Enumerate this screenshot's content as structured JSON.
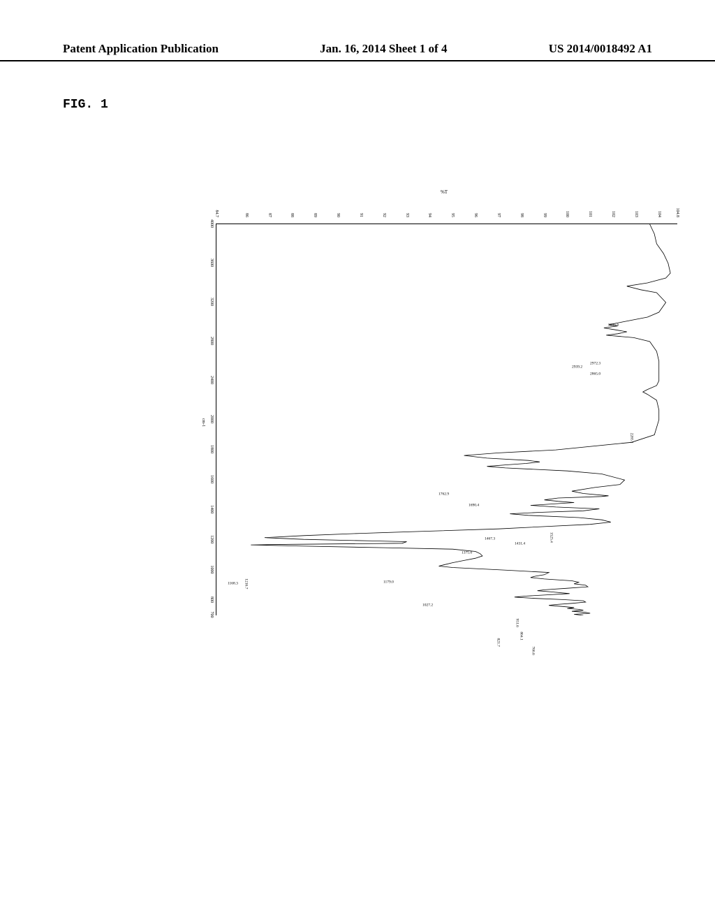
{
  "header": {
    "left": "Patent Application Publication",
    "center": "Jan. 16, 2014  Sheet 1 of 4",
    "right": "US 2014/0018492 A1"
  },
  "figure_label": "FIG. 1",
  "spectrum": {
    "type": "line",
    "xlabel": "cm-1",
    "ylabel": "%T",
    "xlim": [
      4000,
      700
    ],
    "ylim": [
      84.7,
      104.8
    ],
    "bg": "#ffffff",
    "line_color": "#000000",
    "axis_color": "#000000",
    "label_fontsize": 6,
    "x_ticks": [
      4000.0,
      3600,
      3200,
      2800,
      2400,
      2000,
      1800,
      1600,
      1400,
      1200,
      1000,
      800,
      700.0
    ],
    "y_ticks": [
      104.8,
      104,
      103,
      102,
      101,
      100,
      99,
      98,
      97,
      96,
      95,
      94,
      93,
      92,
      91,
      90,
      89,
      88,
      87,
      86,
      84.7
    ],
    "peak_labels": [
      {
        "x": 3366.6,
        "t": 102.4,
        "label": "3366.6",
        "rot": 90
      },
      {
        "x": 2972.3,
        "t": 101.6,
        "label": "2972.3",
        "rot": 90
      },
      {
        "x": 2939.2,
        "t": 100.8,
        "label": "2939.2",
        "rot": 90
      },
      {
        "x": 2865.0,
        "t": 101.6,
        "label": "2865.0",
        "rot": 90
      },
      {
        "x": 2285.1,
        "t": 103.3,
        "label": "2285.1",
        "rot": 0
      },
      {
        "x": 1762.9,
        "t": 95.0,
        "label": "1762.9",
        "rot": 90
      },
      {
        "x": 1690.4,
        "t": 96.3,
        "label": "1690.4",
        "rot": 90
      },
      {
        "x": 1525.4,
        "t": 99.8,
        "label": "1525.4",
        "rot": 0
      },
      {
        "x": 1467.3,
        "t": 97.0,
        "label": "1467.3",
        "rot": 90
      },
      {
        "x": 1431.4,
        "t": 98.3,
        "label": "1431.4",
        "rot": 90
      },
      {
        "x": 1375.0,
        "t": 96.0,
        "label": "1375.0",
        "rot": 90
      },
      {
        "x": 1216.7,
        "t": 86.5,
        "label": "1216.7",
        "rot": 0
      },
      {
        "x": 1179.0,
        "t": 92.6,
        "label": "1179.0",
        "rot": 90
      },
      {
        "x": 1168.3,
        "t": 85.8,
        "label": "1168.3",
        "rot": 90
      },
      {
        "x": 1027.2,
        "t": 94.3,
        "label": "1027.2",
        "rot": 90
      },
      {
        "x": 951.6,
        "t": 98.3,
        "label": "951.6",
        "rot": 0
      },
      {
        "x": 864.1,
        "t": 98.5,
        "label": "864.1",
        "rot": 0
      },
      {
        "x": 821.7,
        "t": 97.5,
        "label": "821.7",
        "rot": 0
      },
      {
        "x": 766.6,
        "t": 99.0,
        "label": "766.6",
        "rot": 0
      }
    ],
    "points": [
      [
        4000,
        103.6
      ],
      [
        3900,
        103.8
      ],
      [
        3800,
        103.9
      ],
      [
        3700,
        104.2
      ],
      [
        3600,
        104.4
      ],
      [
        3500,
        104.5
      ],
      [
        3450,
        104.3
      ],
      [
        3400,
        103.5
      ],
      [
        3366.6,
        102.6
      ],
      [
        3330,
        103.2
      ],
      [
        3300,
        103.9
      ],
      [
        3200,
        104.3
      ],
      [
        3100,
        104.0
      ],
      [
        3050,
        103.5
      ],
      [
        3000,
        102.4
      ],
      [
        2972.3,
        101.8
      ],
      [
        2960,
        102.2
      ],
      [
        2939.2,
        101.6
      ],
      [
        2920,
        102.1
      ],
      [
        2900,
        102.6
      ],
      [
        2880,
        102.2
      ],
      [
        2865.0,
        101.7
      ],
      [
        2840,
        102.9
      ],
      [
        2800,
        103.6
      ],
      [
        2700,
        103.9
      ],
      [
        2600,
        104.0
      ],
      [
        2500,
        104.0
      ],
      [
        2400,
        104.0
      ],
      [
        2350,
        103.9
      ],
      [
        2310,
        103.5
      ],
      [
        2285.1,
        103.3
      ],
      [
        2260,
        103.5
      ],
      [
        2200,
        103.9
      ],
      [
        2100,
        104.0
      ],
      [
        2000,
        104.0
      ],
      [
        1900,
        103.8
      ],
      [
        1850,
        102.8
      ],
      [
        1800,
        99.5
      ],
      [
        1780,
        97.0
      ],
      [
        1762.9,
        95.5
      ],
      [
        1745,
        96.5
      ],
      [
        1730,
        98.3
      ],
      [
        1720,
        98.8
      ],
      [
        1710,
        98.2
      ],
      [
        1700,
        97.3
      ],
      [
        1690.4,
        96.5
      ],
      [
        1680,
        97.3
      ],
      [
        1660,
        100.0
      ],
      [
        1640,
        101.5
      ],
      [
        1600,
        102.5
      ],
      [
        1570,
        102.3
      ],
      [
        1550,
        101.2
      ],
      [
        1525.4,
        100.2
      ],
      [
        1510,
        100.7
      ],
      [
        1495,
        101.8
      ],
      [
        1490,
        101.5
      ],
      [
        1480,
        99.6
      ],
      [
        1467.3,
        99.0
      ],
      [
        1458,
        99.6
      ],
      [
        1450,
        100.3
      ],
      [
        1440,
        99.3
      ],
      [
        1431.4,
        98.4
      ],
      [
        1420,
        99.5
      ],
      [
        1408,
        101.4
      ],
      [
        1395,
        100.7
      ],
      [
        1385,
        98.8
      ],
      [
        1375.0,
        97.5
      ],
      [
        1365,
        98.3
      ],
      [
        1350,
        100.5
      ],
      [
        1335,
        101.5
      ],
      [
        1320,
        101.9
      ],
      [
        1305,
        101.0
      ],
      [
        1290,
        99.0
      ],
      [
        1275,
        97.0
      ],
      [
        1260,
        94.0
      ],
      [
        1245,
        91.0
      ],
      [
        1230,
        88.5
      ],
      [
        1216.7,
        86.8
      ],
      [
        1205,
        88.5
      ],
      [
        1195,
        91.5
      ],
      [
        1190,
        93.0
      ],
      [
        1179.0,
        92.8
      ],
      [
        1175,
        90.0
      ],
      [
        1172,
        88.0
      ],
      [
        1168.3,
        86.2
      ],
      [
        1160,
        88.5
      ],
      [
        1150,
        92.0
      ],
      [
        1140,
        95.0
      ],
      [
        1125,
        96.0
      ],
      [
        1110,
        96.2
      ],
      [
        1095,
        96.3
      ],
      [
        1080,
        96.0
      ],
      [
        1065,
        95.5
      ],
      [
        1050,
        95.0
      ],
      [
        1035,
        94.6
      ],
      [
        1027.2,
        94.4
      ],
      [
        1018,
        95.0
      ],
      [
        1000,
        97.4
      ],
      [
        985,
        99.2
      ],
      [
        970,
        99.0
      ],
      [
        960,
        98.6
      ],
      [
        951.6,
        98.4
      ],
      [
        942,
        99.0
      ],
      [
        930,
        100.2
      ],
      [
        920,
        100.5
      ],
      [
        910,
        100.3
      ],
      [
        900,
        100.8
      ],
      [
        890,
        100.9
      ],
      [
        880,
        100.0
      ],
      [
        870,
        99.0
      ],
      [
        864.1,
        98.7
      ],
      [
        855,
        99.4
      ],
      [
        845,
        100.1
      ],
      [
        837,
        99.2
      ],
      [
        828,
        98.2
      ],
      [
        821.7,
        97.7
      ],
      [
        813,
        98.6
      ],
      [
        805,
        99.8
      ],
      [
        797,
        100.7
      ],
      [
        788,
        100.8
      ],
      [
        780,
        100.2
      ],
      [
        772,
        99.5
      ],
      [
        766.6,
        99.2
      ],
      [
        759,
        99.8
      ],
      [
        752,
        100.3
      ],
      [
        746,
        100.0
      ],
      [
        740,
        100.5
      ],
      [
        734,
        100.7
      ],
      [
        727,
        100.2
      ],
      [
        720,
        100.8
      ],
      [
        714,
        101.0
      ],
      [
        707,
        100.3
      ],
      [
        700,
        100.7
      ]
    ]
  }
}
